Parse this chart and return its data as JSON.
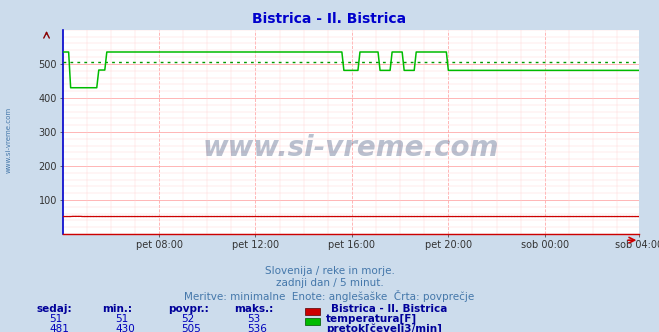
{
  "title": "Bistrica - Il. Bistrica",
  "title_color": "#0000cc",
  "bg_color": "#ccdcec",
  "plot_bg_color": "#ffffff",
  "grid_color_major": "#ffaaaa",
  "grid_color_minor": "#ffd0d0",
  "ylim": [
    0,
    600
  ],
  "yticks": [
    100,
    200,
    300,
    400,
    500
  ],
  "xtick_labels": [
    "pet 08:00",
    "pet 12:00",
    "pet 16:00",
    "pet 20:00",
    "sob 00:00",
    "sob 04:00"
  ],
  "subtitle1": "Slovenija / reke in morje.",
  "subtitle2": "zadnji dan / 5 minut.",
  "subtitle3": "Meritve: minimalne  Enote: anglešaške  Črta: povprečje",
  "subtitle_color": "#4477aa",
  "watermark": "www.si-vreme.com",
  "watermark_color": "#1a3060",
  "temperature_color": "#cc0000",
  "flow_color": "#00bb00",
  "avg_flow_color": "#009900",
  "avg_temp_color": "#cc0000",
  "temperature_avg": 52,
  "temperature_min": 51,
  "temperature_max": 53,
  "temperature_current": 51,
  "flow_avg": 505,
  "flow_min": 430,
  "flow_max": 536,
  "flow_current": 481,
  "legend_title": "Bistrica - Il. Bistrica",
  "legend_temp_label": "temperatura[F]",
  "legend_flow_label": "pretok[čevelj3/min]",
  "table_headers": [
    "sedaj:",
    "min.:",
    "povpr.:",
    "maks.:"
  ],
  "table_value_color": "#0000bb",
  "table_header_color": "#000099",
  "sidebar_text": "www.si-vreme.com",
  "sidebar_color": "#4477aa",
  "left_spine_color": "#0000cc",
  "bottom_spine_color": "#cc0000",
  "arrow_color": "#cc0000"
}
